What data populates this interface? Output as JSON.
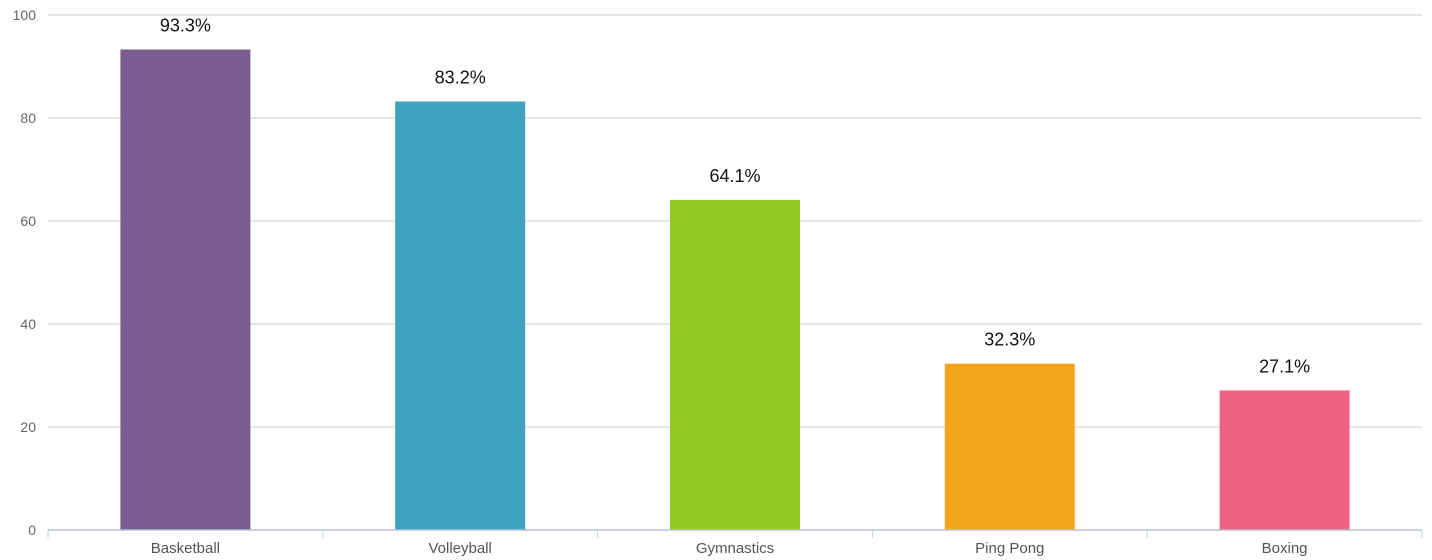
{
  "chart_data": {
    "type": "bar",
    "categories": [
      "Basketball",
      "Volleyball",
      "Gymnastics",
      "Ping Pong",
      "Boxing"
    ],
    "values": [
      93.3,
      83.2,
      64.1,
      32.3,
      27.1
    ],
    "data_labels": [
      "93.3%",
      "83.2%",
      "64.1%",
      "32.3%",
      "27.1%"
    ],
    "colors": [
      "#7b5e91",
      "#3fa2c1",
      "#96c825",
      "#f4a41b",
      "#f06283"
    ],
    "title": "",
    "xlabel": "",
    "ylabel": "",
    "ylim": [
      0,
      100
    ],
    "yticks": [
      0,
      20,
      40,
      60,
      80,
      100
    ],
    "ytick_labels": [
      "0",
      "20",
      "40",
      "60",
      "80",
      "100"
    ],
    "grid": true,
    "legend": "none"
  }
}
